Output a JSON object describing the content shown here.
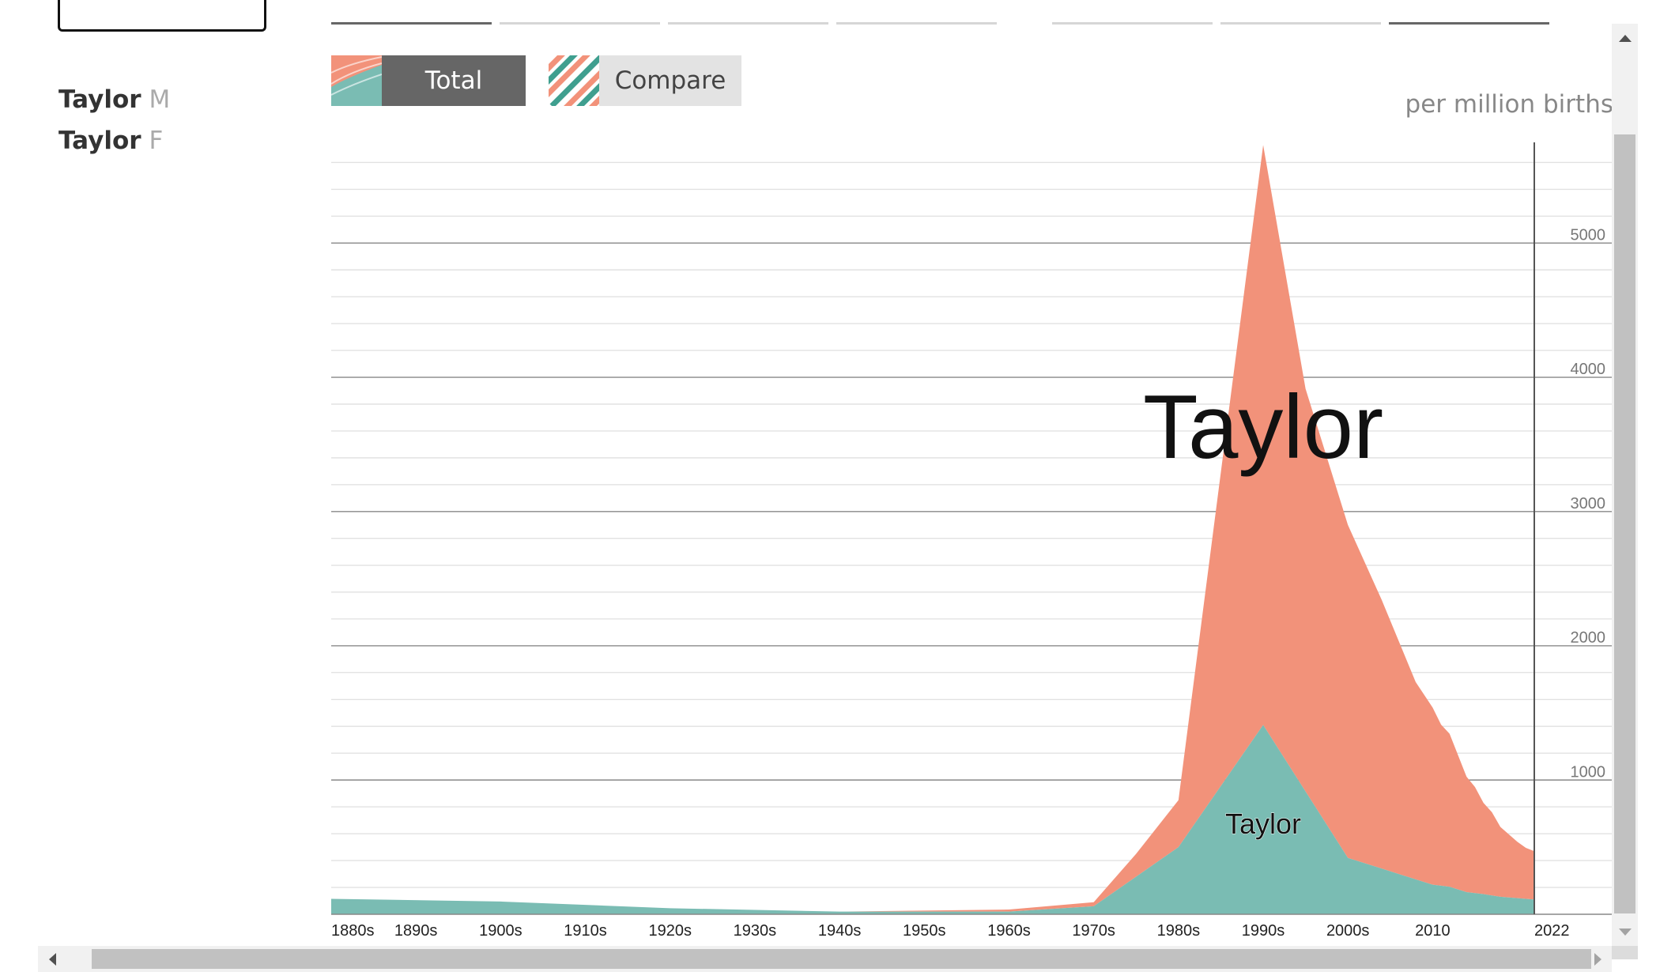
{
  "buttons": {
    "total_label": "Total",
    "compare_label": "Compare"
  },
  "names": [
    {
      "name": "Taylor",
      "sex": "M"
    },
    {
      "name": "Taylor",
      "sex": "F"
    }
  ],
  "colors": {
    "female": "#f2927a",
    "male": "#7abcb3",
    "total_button_bg": "#666666",
    "compare_button_bg": "#e3e3e3",
    "gridline_major": "#888888",
    "gridline_minor": "#e2e2e2"
  },
  "chart_data": {
    "type": "area",
    "stacked": true,
    "ylabel": "per million births",
    "ylim": [
      0,
      5750
    ],
    "xlim": [
      1880,
      2022
    ],
    "y_ticks": [
      1000,
      2000,
      3000,
      4000,
      5000
    ],
    "y_tick_labels": [
      "1000",
      "2000",
      "3000",
      "4000",
      "5000"
    ],
    "x_ticks": [
      1880,
      1890,
      1900,
      1910,
      1920,
      1930,
      1940,
      1950,
      1960,
      1970,
      1980,
      1990,
      2000,
      2010,
      2022
    ],
    "x_tick_labels": [
      "1880s",
      "1890s",
      "1900s",
      "1910s",
      "1920s",
      "1930s",
      "1940s",
      "1950s",
      "1960s",
      "1970s",
      "1980s",
      "1990s",
      "2000s",
      "2010",
      "2022"
    ],
    "series": [
      {
        "name": "Taylor",
        "sex": "M",
        "color": "#7abcb3",
        "x": [
          1880,
          1900,
          1920,
          1940,
          1960,
          1970,
          1980,
          1990,
          2000,
          2004,
          2008,
          2010,
          2012,
          2014,
          2016,
          2018,
          2020,
          2022
        ],
        "values": [
          115,
          95,
          45,
          20,
          20,
          60,
          500,
          1410,
          420,
          340,
          260,
          220,
          205,
          165,
          150,
          130,
          120,
          110
        ]
      },
      {
        "name": "Taylor",
        "sex": "F",
        "color": "#f2927a",
        "x": [
          1880,
          1900,
          1920,
          1940,
          1960,
          1970,
          1975,
          1980,
          1990,
          1995,
          2000,
          2004,
          2008,
          2010,
          2011,
          2012,
          2013,
          2014,
          2015,
          2016,
          2017,
          2018,
          2019,
          2020,
          2021,
          2022
        ],
        "values": [
          0,
          0,
          0,
          0,
          15,
          30,
          170,
          350,
          4320,
          3000,
          2480,
          2000,
          1470,
          1320,
          1200,
          1140,
          1000,
          860,
          790,
          680,
          620,
          520,
          470,
          420,
          380,
          360
        ]
      }
    ],
    "annotations": [
      {
        "text": "Taylor",
        "series": "F",
        "x": 1990,
        "y": 3400
      },
      {
        "text": "Taylor",
        "series": "M",
        "x": 1990,
        "y": 600
      }
    ]
  }
}
